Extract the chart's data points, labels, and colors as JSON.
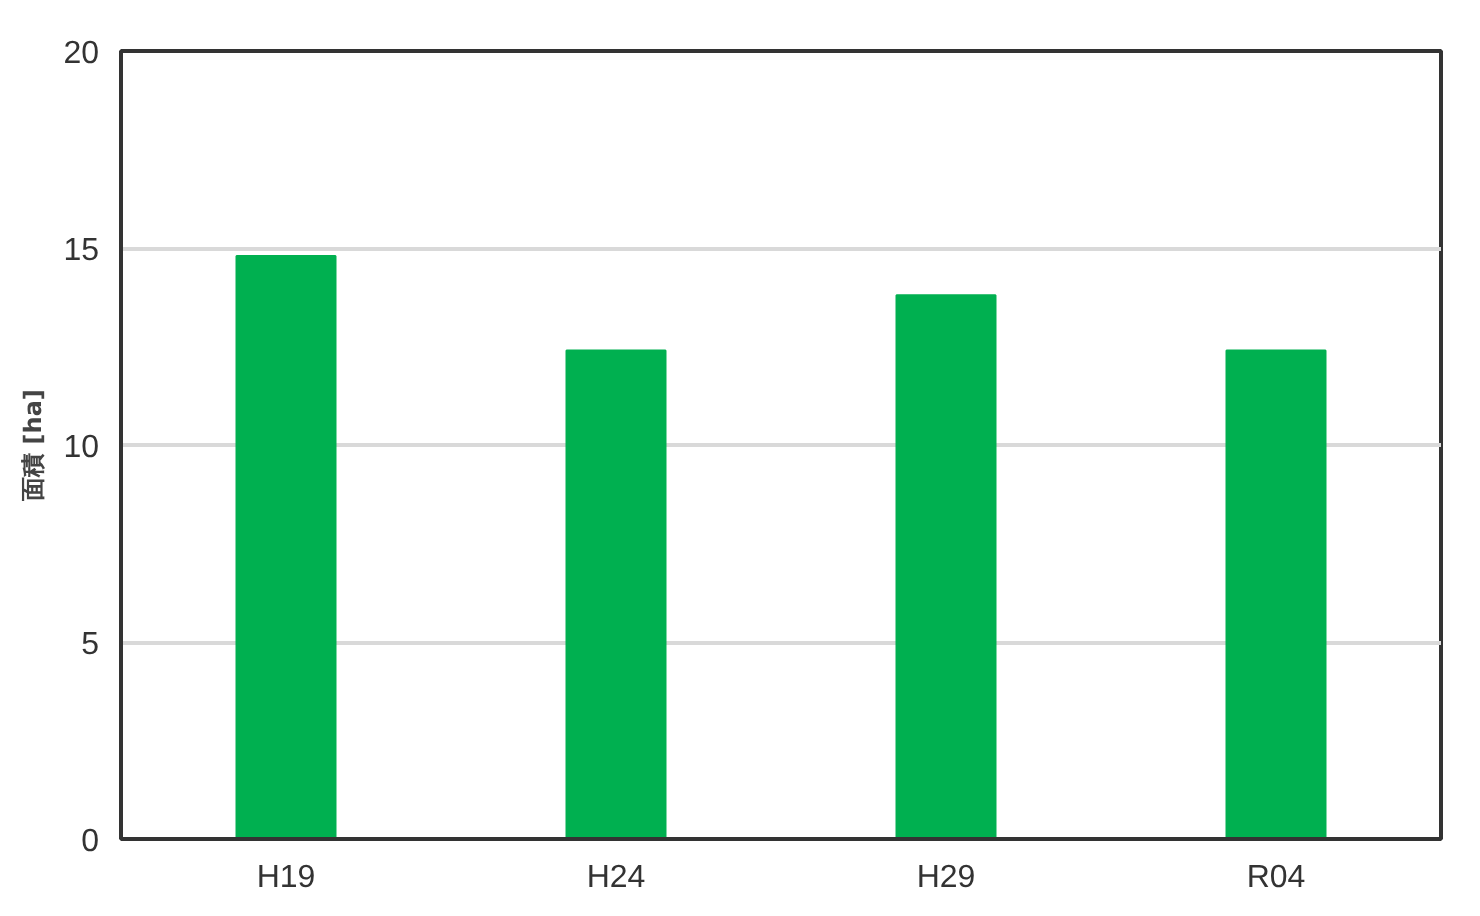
{
  "chart_data": {
    "type": "bar",
    "ylabel": "面積 [ha]",
    "categories": [
      "H19",
      "H24",
      "H29",
      "R04"
    ],
    "values": [
      14.8,
      12.4,
      13.8,
      12.4
    ],
    "color": "#00b050",
    "ylim": [
      0,
      20
    ],
    "yticks": [
      0,
      5,
      10,
      15,
      20
    ],
    "grid": "y"
  }
}
